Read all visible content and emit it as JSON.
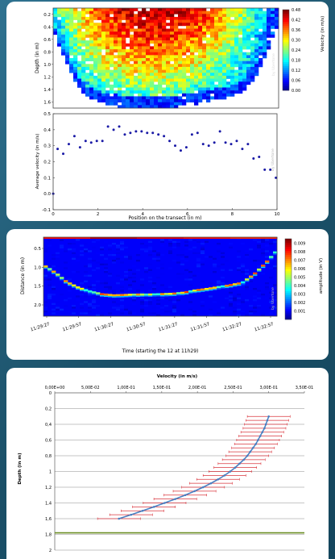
{
  "chart_data": [
    {
      "type": "heatmap",
      "ylabel": "Depth (in m)",
      "y_ticks": [
        "0.2",
        "0.4",
        "0.6",
        "0.8",
        "1.0",
        "1.2",
        "1.4",
        "1.6"
      ],
      "colorbar": {
        "label": "Velocity (in m/s)",
        "ticks": [
          "0.48",
          "0.42",
          "0.36",
          "0.30",
          "0.24",
          "0.18",
          "0.12",
          "0.06",
          "0.00"
        ],
        "range": [
          0,
          0.48
        ]
      },
      "watermark": "by Ubertone",
      "x_range": [
        0,
        10
      ],
      "y_range": [
        0.1,
        1.7
      ],
      "bottom_depth_profile": {
        "x": [
          0,
          0.5,
          1,
          1.5,
          2,
          2.5,
          3,
          3.5,
          4,
          4.5,
          5,
          5.5,
          6,
          6.5,
          7,
          7.5,
          8,
          8.5,
          9,
          9.5,
          10
        ],
        "depth": [
          0.45,
          0.9,
          1.3,
          1.52,
          1.6,
          1.66,
          1.68,
          1.69,
          1.7,
          1.7,
          1.69,
          1.68,
          1.65,
          1.62,
          1.58,
          1.55,
          1.5,
          1.42,
          1.2,
          0.8,
          0.35
        ]
      }
    },
    {
      "type": "scatter",
      "xlabel": "Position on the transect (in m)",
      "ylabel": "Average velocity (in m/s)",
      "x_ticks": [
        "0",
        "2",
        "4",
        "6",
        "8",
        "10"
      ],
      "y_ticks": [
        "-0.1",
        "0.0",
        "0.1",
        "0.2",
        "0.3",
        "0.4",
        "0.5"
      ],
      "xlim": [
        0,
        10
      ],
      "ylim": [
        -0.1,
        0.5
      ],
      "watermark": "by Ubertone",
      "x": [
        0.0,
        0.2,
        0.45,
        0.7,
        0.95,
        1.2,
        1.45,
        1.7,
        1.95,
        2.2,
        2.45,
        2.7,
        2.95,
        3.2,
        3.45,
        3.7,
        3.95,
        4.2,
        4.45,
        4.7,
        4.95,
        5.2,
        5.45,
        5.7,
        5.95,
        6.2,
        6.45,
        6.7,
        6.95,
        7.2,
        7.45,
        7.7,
        7.95,
        8.2,
        8.45,
        8.7,
        8.95,
        9.2,
        9.45,
        9.7,
        9.95
      ],
      "y": [
        0.0,
        0.28,
        0.25,
        0.31,
        0.36,
        0.29,
        0.33,
        0.32,
        0.33,
        0.33,
        0.42,
        0.4,
        0.42,
        0.37,
        0.38,
        0.39,
        0.39,
        0.38,
        0.38,
        0.37,
        0.36,
        0.33,
        0.3,
        0.27,
        0.29,
        0.37,
        0.38,
        0.31,
        0.3,
        0.32,
        0.39,
        0.32,
        0.31,
        0.33,
        0.28,
        0.31,
        0.22,
        0.23,
        0.15,
        0.15,
        0.1
      ]
    },
    {
      "type": "heatmap",
      "xlabel": "Time (starting the 12 at 11h29)",
      "ylabel": "Distance (in m)",
      "x_ticks": [
        "11:29:27",
        "11:29:57",
        "11:30:27",
        "11:30:57",
        "11:31:27",
        "11:31:57",
        "11:32:27",
        "11:32:57"
      ],
      "y_ticks": [
        "0.5",
        "1.0",
        "1.5",
        "2.0"
      ],
      "y_range": [
        0.2,
        2.3
      ],
      "colorbar": {
        "label": "amplitude (in V)",
        "ticks": [
          "0.009",
          "0.008",
          "0.007",
          "0.006",
          "0.005",
          "0.004",
          "0.003",
          "0.002",
          "0.001"
        ],
        "range": [
          0,
          0.0095
        ]
      },
      "watermark": "by Ubertone",
      "bottom_trace": {
        "x_frac": [
          0.0,
          0.05,
          0.1,
          0.15,
          0.2,
          0.25,
          0.3,
          0.35,
          0.4,
          0.45,
          0.5,
          0.55,
          0.6,
          0.65,
          0.7,
          0.75,
          0.8,
          0.85,
          0.9,
          0.95,
          1.0
        ],
        "distance": [
          0.95,
          1.15,
          1.4,
          1.55,
          1.65,
          1.72,
          1.75,
          1.74,
          1.73,
          1.73,
          1.72,
          1.71,
          1.68,
          1.62,
          1.58,
          1.53,
          1.48,
          1.42,
          1.2,
          0.9,
          0.55
        ]
      }
    },
    {
      "type": "line",
      "xlabel": "Velocity (in m/s)",
      "ylabel": "Depth (in m)",
      "x_ticks": [
        "0,00E+00",
        "5,00E-02",
        "1,00E-01",
        "1,50E-01",
        "2,00E-01",
        "2,50E-01",
        "3,00E-01",
        "3,50E-01"
      ],
      "y_ticks": [
        "0",
        "0,2",
        "0,4",
        "0,6",
        "0,8",
        "1",
        "1,2",
        "1,4",
        "1,6",
        "1,8",
        "2"
      ],
      "xlim": [
        0,
        0.35
      ],
      "ylim": [
        0,
        2
      ],
      "y_inverted": true,
      "series": [
        {
          "values_depth": [
            0.3,
            0.35,
            0.4,
            0.45,
            0.5,
            0.55,
            0.6,
            0.65,
            0.7,
            0.75,
            0.8,
            0.85,
            0.9,
            0.95,
            1.0,
            1.05,
            1.1,
            1.15,
            1.2,
            1.25,
            1.3,
            1.35,
            1.4,
            1.45,
            1.5,
            1.55,
            1.6
          ],
          "values_velocity": [
            0.3,
            0.298,
            0.296,
            0.294,
            0.291,
            0.288,
            0.285,
            0.282,
            0.278,
            0.274,
            0.27,
            0.265,
            0.259,
            0.253,
            0.246,
            0.238,
            0.229,
            0.219,
            0.208,
            0.196,
            0.183,
            0.169,
            0.154,
            0.139,
            0.123,
            0.107,
            0.09
          ],
          "error_halfwidth": [
            0.03,
            0.03,
            0.03,
            0.03,
            0.03,
            0.03,
            0.03,
            0.03,
            0.03,
            0.03,
            0.03,
            0.03,
            0.03,
            0.03,
            0.03,
            0.03,
            0.03,
            0.03,
            0.03,
            0.03,
            0.03,
            0.03,
            0.03,
            0.03,
            0.03,
            0.03,
            0.03
          ],
          "color": "#4a7fc1",
          "error_color": "#d9363e"
        }
      ],
      "reference_line": {
        "depth": 1.78,
        "color": "#6b8e23"
      }
    }
  ],
  "colors": {
    "card_background": "#ffffff",
    "page_background": "#1d5670"
  }
}
